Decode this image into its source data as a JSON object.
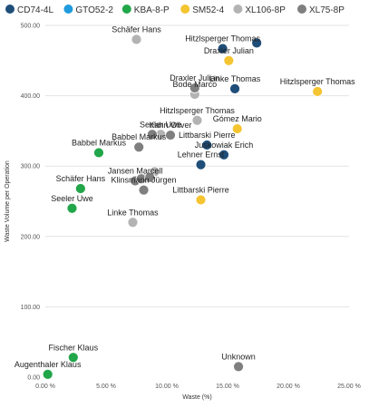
{
  "chart_data": {
    "type": "scatter",
    "xlabel": "Waste (%)",
    "ylabel": "Waste Volume per Operation",
    "xlim": [
      0,
      25
    ],
    "ylim": [
      0,
      500
    ],
    "x_ticks": [
      "0.00 %",
      "5.00 %",
      "10.00 %",
      "15.00 %",
      "20.00 %",
      "25.00 %"
    ],
    "y_ticks": [
      "0.00",
      "100.00",
      "200.00",
      "300.00",
      "400.00",
      "500.00"
    ],
    "x_tick_values": [
      0,
      5,
      10,
      15,
      20,
      25
    ],
    "y_tick_values": [
      0,
      100,
      200,
      300,
      400,
      500
    ],
    "grid": "horizontal",
    "legend_position": "top-left",
    "series": [
      {
        "name": "CD74-4L",
        "color": "#1f4e79",
        "points": [
          {
            "x": 14.6,
            "y": 467,
            "label": "Hitzlsperger Thomas"
          },
          {
            "x": 17.4,
            "y": 475,
            "label": ""
          },
          {
            "x": 15.6,
            "y": 410,
            "label": "Linke Thomas"
          },
          {
            "x": 13.3,
            "y": 330,
            "label": "Littbarski Pierre"
          },
          {
            "x": 14.7,
            "y": 316,
            "label": "Juskowiak Erich"
          },
          {
            "x": 12.8,
            "y": 302,
            "label": "Lehner Ernst"
          }
        ]
      },
      {
        "name": "GTO52-2",
        "color": "#1f9bde",
        "points": []
      },
      {
        "name": "KBA-8-P",
        "color": "#22a64a",
        "points": [
          {
            "x": 4.4,
            "y": 319,
            "label": "Babbel Markus"
          },
          {
            "x": 2.9,
            "y": 268,
            "label": "Schäfer Hans"
          },
          {
            "x": 2.2,
            "y": 240,
            "label": "Seeler Uwe"
          },
          {
            "x": 2.3,
            "y": 28,
            "label": "Fischer Klaus"
          },
          {
            "x": 0.2,
            "y": 4,
            "label": "Augenthaler Klaus"
          }
        ]
      },
      {
        "name": "SM52-4",
        "color": "#f5c431",
        "points": [
          {
            "x": 15.1,
            "y": 450,
            "label": "Draxler Julian"
          },
          {
            "x": 22.4,
            "y": 406,
            "label": "Hitzlsperger Thomas"
          },
          {
            "x": 15.8,
            "y": 353,
            "label": "Gómez Mario"
          },
          {
            "x": 12.8,
            "y": 252,
            "label": "Littbarski Pierre"
          }
        ]
      },
      {
        "name": "XL106-8P",
        "color": "#b3b3b3",
        "points": [
          {
            "x": 7.5,
            "y": 480,
            "label": "Schäfer Hans"
          },
          {
            "x": 12.3,
            "y": 402,
            "label": "Bode Marco"
          },
          {
            "x": 12.5,
            "y": 365,
            "label": "Hitzlsperger Thomas"
          },
          {
            "x": 9.5,
            "y": 345,
            "label": "Seeler Uwe"
          },
          {
            "x": 9.0,
            "y": 292,
            "label": ""
          },
          {
            "x": 8.3,
            "y": 283,
            "label": ""
          },
          {
            "x": 7.2,
            "y": 220,
            "label": "Linke Thomas"
          }
        ]
      },
      {
        "name": "XL75-8P",
        "color": "#7f7f7f",
        "points": [
          {
            "x": 12.3,
            "y": 411,
            "label": "Draxler Julian"
          },
          {
            "x": 10.3,
            "y": 344,
            "label": "Kahn Oliver"
          },
          {
            "x": 8.8,
            "y": 345,
            "label": ""
          },
          {
            "x": 7.7,
            "y": 327,
            "label": "Babbel Markus"
          },
          {
            "x": 7.4,
            "y": 279,
            "label": "Jansen Marcell"
          },
          {
            "x": 7.9,
            "y": 282,
            "label": ""
          },
          {
            "x": 8.6,
            "y": 284,
            "label": ""
          },
          {
            "x": 8.1,
            "y": 266,
            "label": "Klinsmann Jürgen"
          },
          {
            "x": 15.9,
            "y": 15,
            "label": "Unknown"
          }
        ]
      }
    ]
  }
}
